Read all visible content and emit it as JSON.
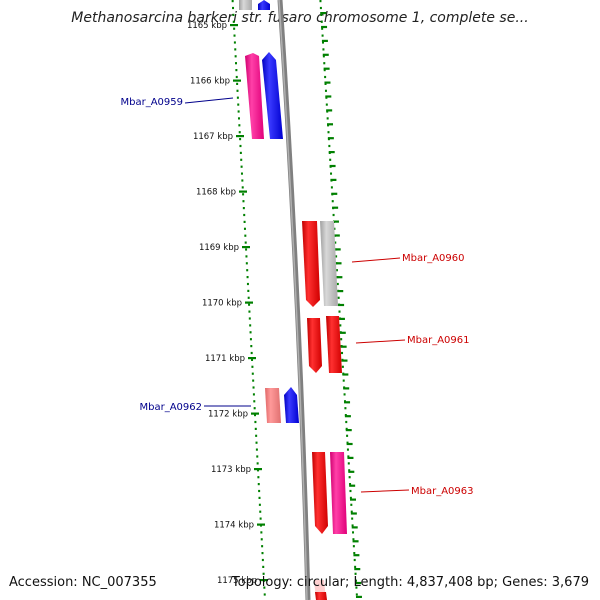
{
  "title": "Methanosarcina barkeri str. fusaro chromosome 1, complete se...",
  "footer": {
    "accession": "Accession: NC_007355",
    "topology": "Topology: circular; Length: 4,837,408 bp; Genes: 3,679"
  },
  "ticks": [
    {
      "label": "1165 kbp",
      "kbp": 1165
    },
    {
      "label": "1166 kbp",
      "kbp": 1166
    },
    {
      "label": "1167 kbp",
      "kbp": 1167
    },
    {
      "label": "1168 kbp",
      "kbp": 1168
    },
    {
      "label": "1169 kbp",
      "kbp": 1169
    },
    {
      "label": "1170 kbp",
      "kbp": 1170
    },
    {
      "label": "1171 kbp",
      "kbp": 1171
    },
    {
      "label": "1172 kbp",
      "kbp": 1172
    },
    {
      "label": "1173 kbp",
      "kbp": 1173
    },
    {
      "label": "1174 kbp",
      "kbp": 1174
    },
    {
      "label": "1175 kbp",
      "kbp": 1175
    }
  ],
  "gene_labels": [
    {
      "text": "Mbar_A0959",
      "color": "#00008b",
      "side": "left"
    },
    {
      "text": "Mbar_A0960",
      "color": "#cc0000",
      "side": "right"
    },
    {
      "text": "Mbar_A0961",
      "color": "#cc0000",
      "side": "right"
    },
    {
      "text": "Mbar_A0962",
      "color": "#00008b",
      "side": "left"
    },
    {
      "text": "Mbar_A0963",
      "color": "#cc0000",
      "side": "right"
    }
  ],
  "colors": {
    "forward_strand": "#0000ff",
    "reverse_strand": "#ff0000",
    "pink": "#ff1493",
    "gray": "#b8b8b8",
    "salmon": "#f08080",
    "tick_green": "#008000",
    "axis_gray": "#808080"
  }
}
